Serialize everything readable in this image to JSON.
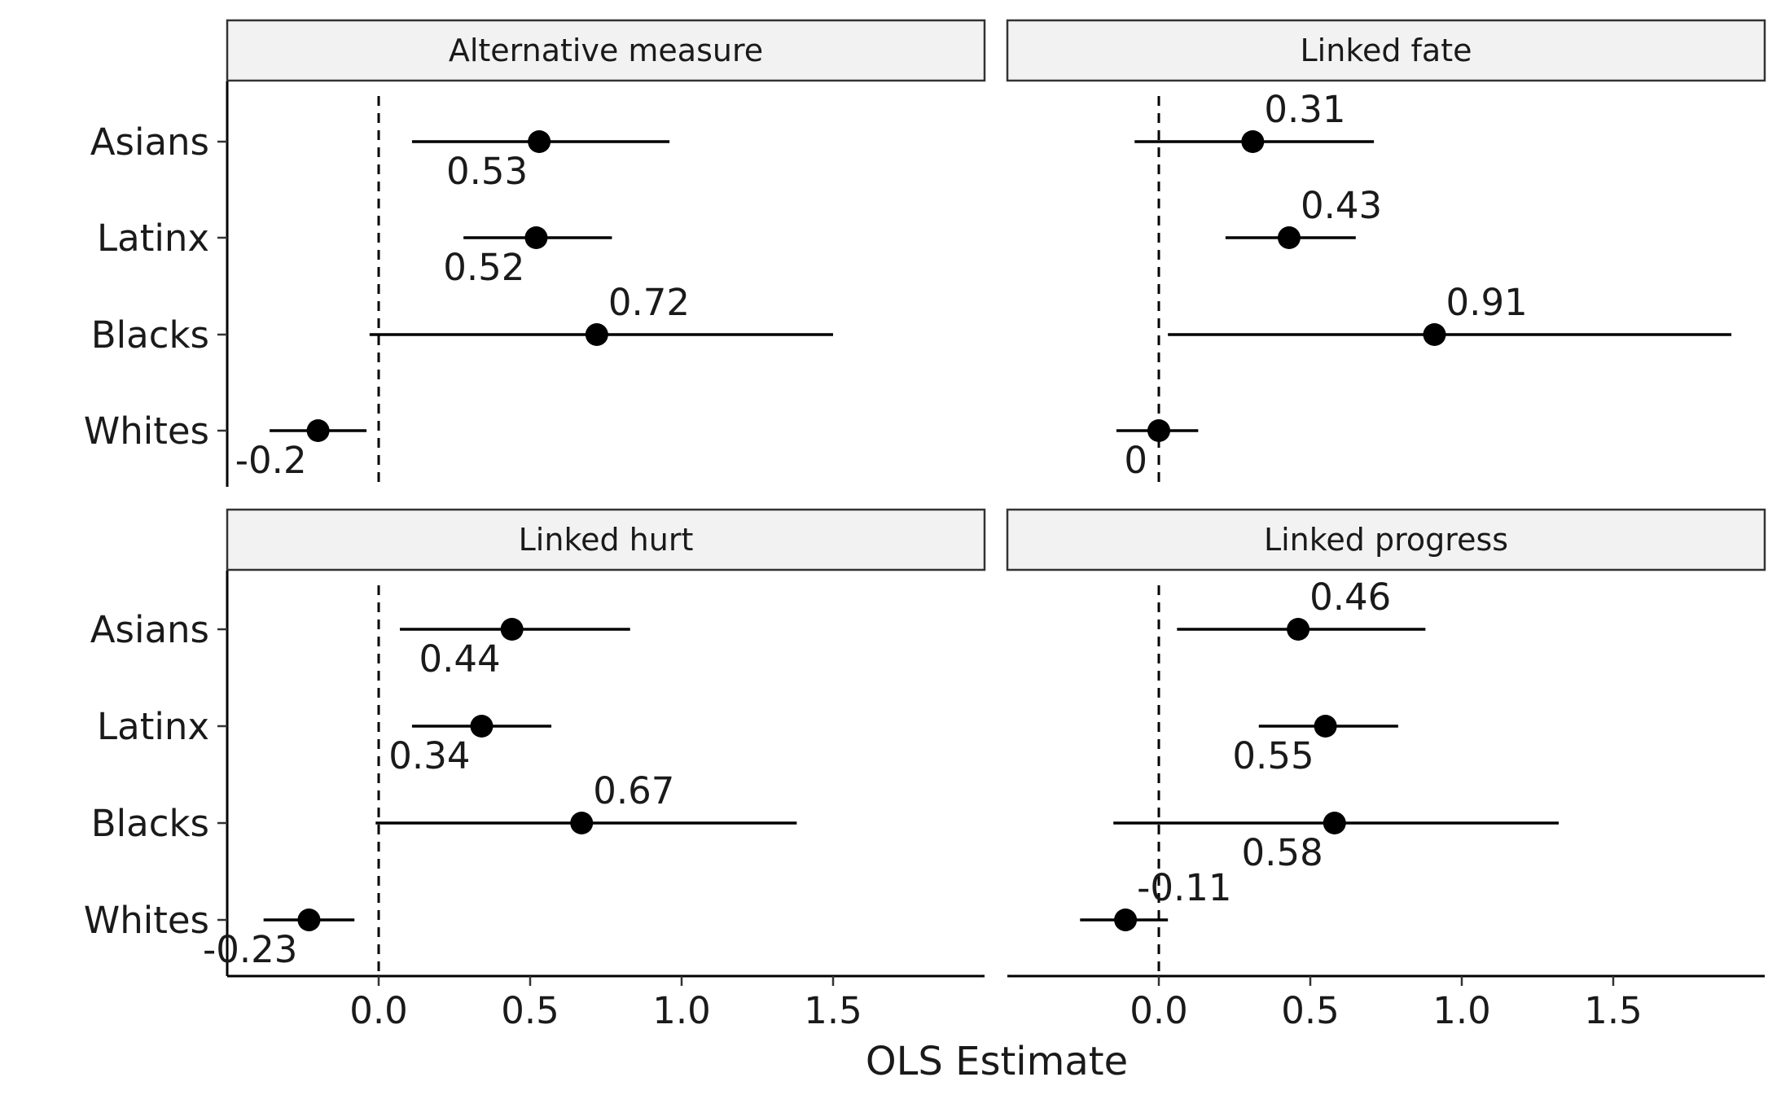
{
  "chart_data": {
    "type": "scatter",
    "subtype": "coefficient-plot",
    "title": "",
    "xlabel": "OLS Estimate",
    "ylabel": "",
    "xlim": [
      -0.5,
      2.0
    ],
    "x_ticks": [
      0.0,
      0.5,
      1.0,
      1.5
    ],
    "x_tick_labels": [
      "0.0",
      "0.5",
      "1.0",
      "1.5"
    ],
    "categories": [
      "Asians",
      "Latinx",
      "Blacks",
      "Whites"
    ],
    "reference_line": 0,
    "grid": false,
    "legend": "none",
    "colors": {
      "point": "#000000",
      "strip_fill": "#f2f2f2",
      "line": "#000000"
    },
    "panels": [
      {
        "name": "Alternative measure",
        "points": [
          {
            "group": "Asians",
            "estimate": 0.53,
            "lo": 0.11,
            "hi": 0.96,
            "label": "0.53",
            "label_pos": "below"
          },
          {
            "group": "Latinx",
            "estimate": 0.52,
            "lo": 0.28,
            "hi": 0.77,
            "label": "0.52",
            "label_pos": "below"
          },
          {
            "group": "Blacks",
            "estimate": 0.72,
            "lo": -0.03,
            "hi": 1.5,
            "label": "0.72",
            "label_pos": "above"
          },
          {
            "group": "Whites",
            "estimate": -0.2,
            "lo": -0.36,
            "hi": -0.04,
            "label": "-0.2",
            "label_pos": "below"
          }
        ]
      },
      {
        "name": "Linked fate",
        "points": [
          {
            "group": "Asians",
            "estimate": 0.31,
            "lo": -0.08,
            "hi": 0.71,
            "label": "0.31",
            "label_pos": "above"
          },
          {
            "group": "Latinx",
            "estimate": 0.43,
            "lo": 0.22,
            "hi": 0.65,
            "label": "0.43",
            "label_pos": "above"
          },
          {
            "group": "Blacks",
            "estimate": 0.91,
            "lo": 0.03,
            "hi": 1.89,
            "label": "0.91",
            "label_pos": "above"
          },
          {
            "group": "Whites",
            "estimate": 0,
            "lo": -0.14,
            "hi": 0.13,
            "label": "0",
            "label_pos": "below"
          }
        ]
      },
      {
        "name": "Linked hurt",
        "points": [
          {
            "group": "Asians",
            "estimate": 0.44,
            "lo": 0.07,
            "hi": 0.83,
            "label": "0.44",
            "label_pos": "below"
          },
          {
            "group": "Latinx",
            "estimate": 0.34,
            "lo": 0.11,
            "hi": 0.57,
            "label": "0.34",
            "label_pos": "below"
          },
          {
            "group": "Blacks",
            "estimate": 0.67,
            "lo": -0.01,
            "hi": 1.38,
            "label": "0.67",
            "label_pos": "above"
          },
          {
            "group": "Whites",
            "estimate": -0.23,
            "lo": -0.38,
            "hi": -0.08,
            "label": "-0.23",
            "label_pos": "below"
          }
        ]
      },
      {
        "name": "Linked progress",
        "points": [
          {
            "group": "Asians",
            "estimate": 0.46,
            "lo": 0.06,
            "hi": 0.88,
            "label": "0.46",
            "label_pos": "above"
          },
          {
            "group": "Latinx",
            "estimate": 0.55,
            "lo": 0.33,
            "hi": 0.79,
            "label": "0.55",
            "label_pos": "below"
          },
          {
            "group": "Blacks",
            "estimate": 0.58,
            "lo": -0.15,
            "hi": 1.32,
            "label": "0.58",
            "label_pos": "below"
          },
          {
            "group": "Whites",
            "estimate": -0.11,
            "lo": -0.26,
            "hi": 0.03,
            "label": "-0.11",
            "label_pos": "above"
          }
        ]
      }
    ]
  }
}
